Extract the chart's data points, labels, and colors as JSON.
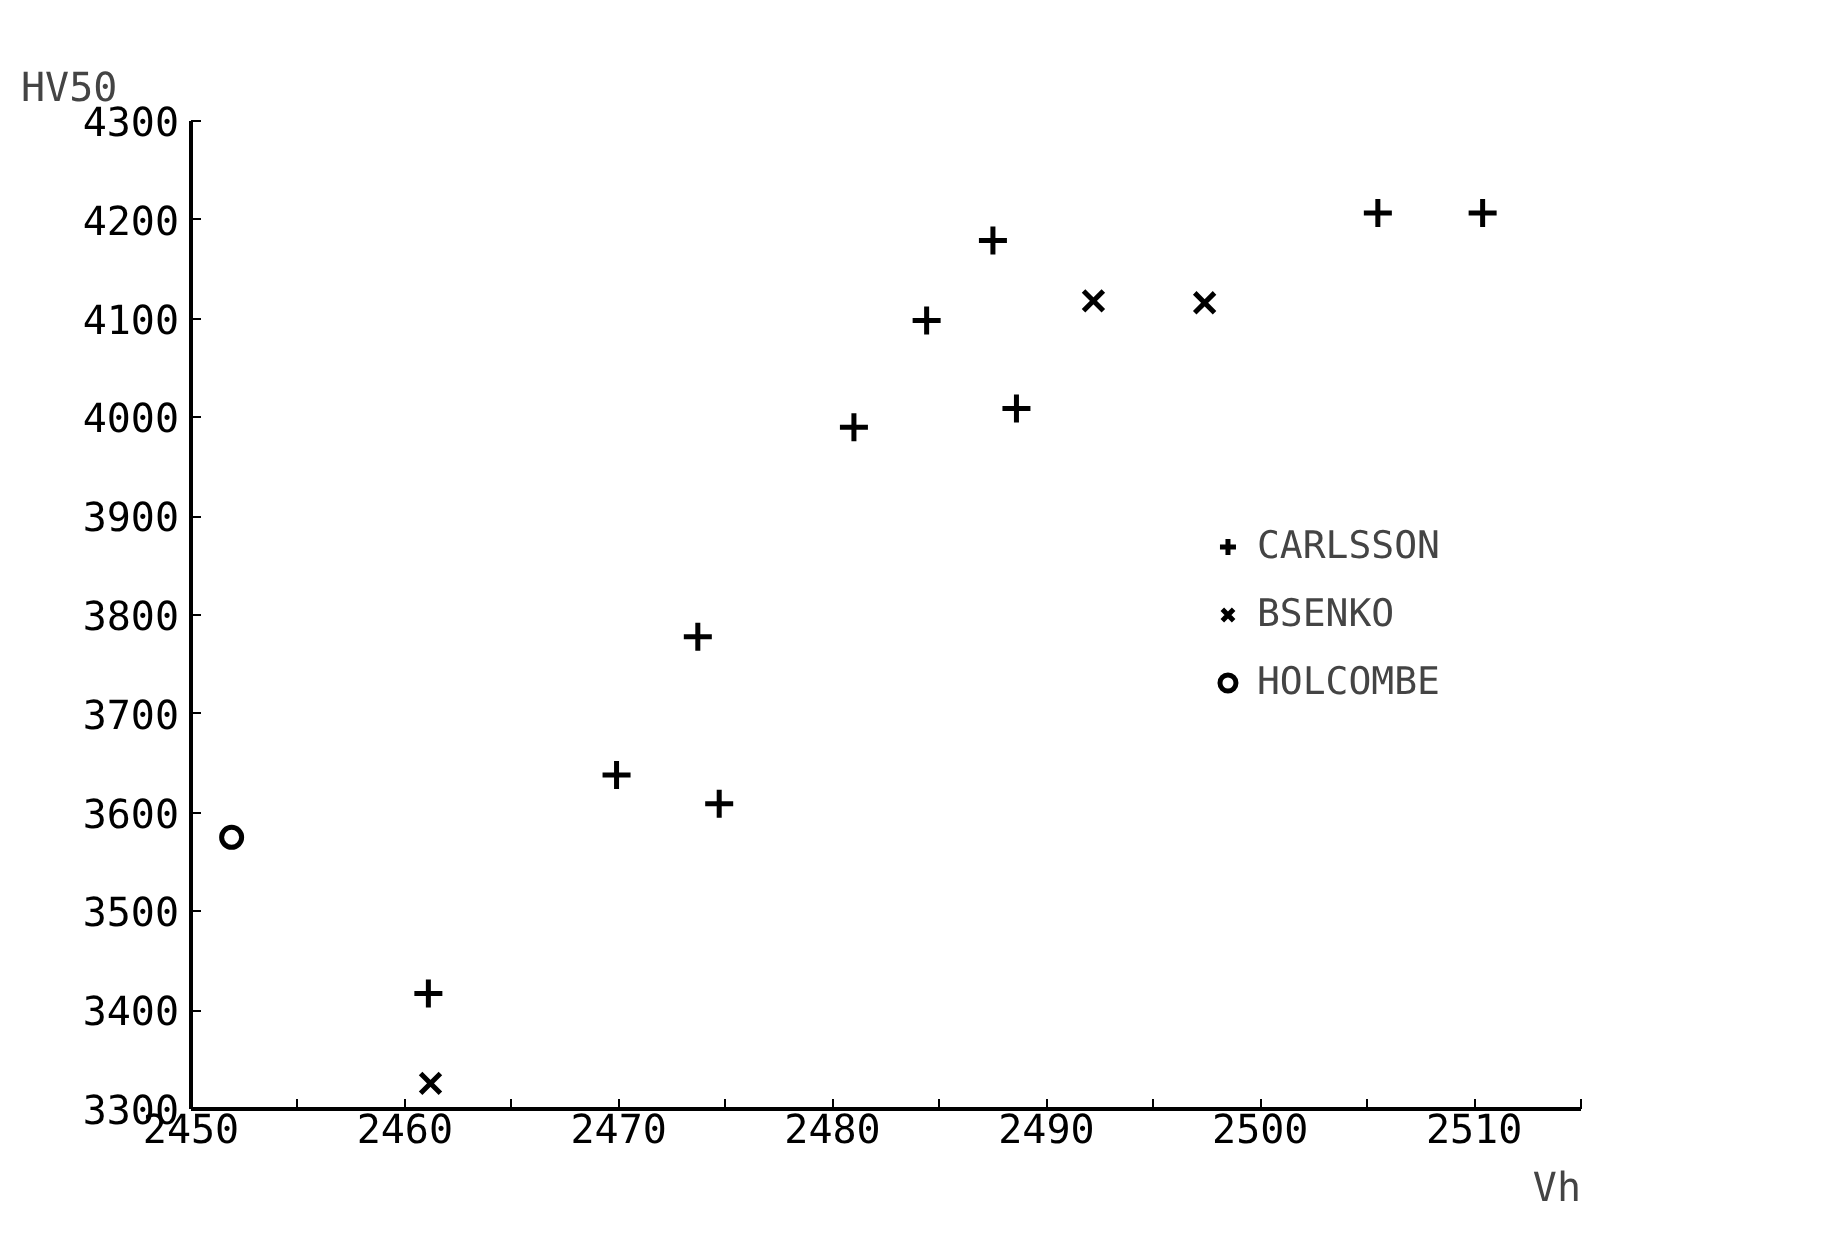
{
  "chart_data": {
    "type": "scatter",
    "xlabel": "Vh",
    "ylabel": "HV50",
    "xlim": [
      2450,
      2515
    ],
    "ylim": [
      3300,
      4300
    ],
    "xticks": [
      2450,
      {
        "value": 2455,
        "label": null
      },
      2460,
      {
        "value": 2465,
        "label": null
      },
      2470,
      {
        "value": 2475,
        "label": null
      },
      2480,
      {
        "value": 2485,
        "label": null
      },
      2490,
      {
        "value": 2495,
        "label": null
      },
      2500,
      {
        "value": 2505,
        "label": null
      },
      2510,
      {
        "value": 2515,
        "label": null
      }
    ],
    "yticks": [
      3300,
      3400,
      3500,
      3600,
      3700,
      3800,
      3900,
      4000,
      4100,
      4200,
      4300
    ],
    "grid": false,
    "legend": "right",
    "series": [
      {
        "name": "CARLSSON",
        "color": "#000000",
        "marker": "cross",
        "x": [
          2461.1,
          2469.9,
          2473.7,
          2474.7,
          2481.0,
          2484.4,
          2487.5,
          2488.6,
          2505.5,
          2510.4
        ],
        "values": [
          3417,
          3638,
          3778,
          3609,
          3990,
          4098,
          4179,
          4009,
          4207,
          4207
        ]
      },
      {
        "name": "BSENKO",
        "color": "#000000",
        "marker": "x",
        "x": [
          2461.2,
          2492.2,
          2497.4
        ],
        "values": [
          3326,
          4118,
          4116
        ]
      },
      {
        "name": "HOLCOMBE",
        "color": "#000000",
        "marker": "circle",
        "x": [
          2451.9
        ],
        "values": [
          3575
        ]
      }
    ]
  }
}
